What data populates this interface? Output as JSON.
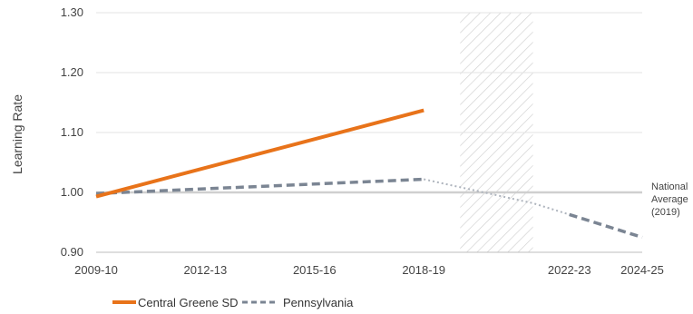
{
  "chart_data": {
    "type": "line",
    "ylabel": "Learning Rate",
    "ylim": [
      0.9,
      1.3
    ],
    "y_ticks": [
      0.9,
      1.0,
      1.1,
      1.2,
      1.3
    ],
    "y_tick_labels": [
      "0.90",
      "1.00",
      "1.10",
      "1.20",
      "1.30"
    ],
    "xlim": [
      2009,
      2024
    ],
    "x_ticks": [
      2009,
      2012,
      2015,
      2018,
      2022,
      2024
    ],
    "x_tick_labels": [
      "2009-10",
      "2012-13",
      "2015-16",
      "2018-19",
      "2022-23",
      "2024-25"
    ],
    "grid": "horizontal",
    "reference_line": {
      "y": 1.0,
      "label_lines": [
        "National",
        "Average",
        "(2019)"
      ]
    },
    "shaded_period": {
      "x_start": 2019,
      "x_end": 2021,
      "pattern": "diagonal-hatch"
    },
    "series": [
      {
        "name": "Central Greene SD",
        "color": "#E8731A",
        "style": "solid",
        "points": [
          [
            2009,
            0.993
          ],
          [
            2018,
            1.137
          ]
        ]
      },
      {
        "name": "Pennsylvania",
        "color": "#7B8593",
        "style": "dashed",
        "points": [
          [
            2009,
            0.998
          ],
          [
            2018,
            1.022
          ]
        ],
        "projection": {
          "style": "dotted",
          "points": [
            [
              2018,
              1.022
            ],
            [
              2021,
              0.982
            ],
            [
              2022,
              0.963
            ]
          ]
        },
        "continuation": {
          "style": "dashed",
          "points": [
            [
              2022,
              0.963
            ],
            [
              2024,
              0.925
            ]
          ]
        }
      }
    ],
    "legend_position": "bottom-left"
  }
}
